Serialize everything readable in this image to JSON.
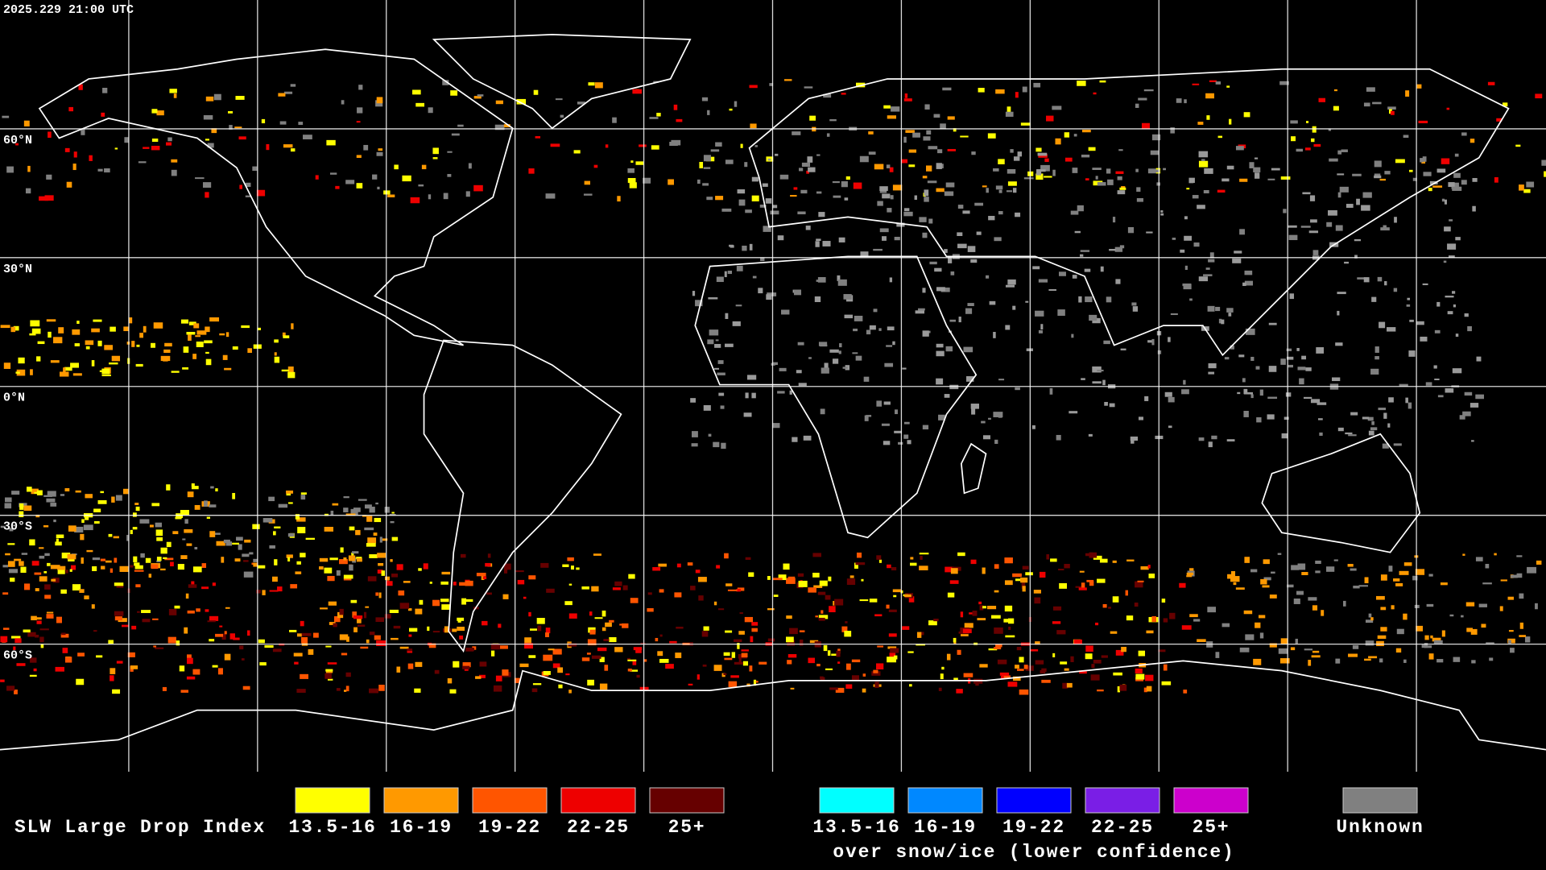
{
  "header": {
    "timestamp": "2025.229 21:00 UTC"
  },
  "latitude_labels": [
    "60°N",
    "30°N",
    "0°N",
    "30°S",
    "60°S"
  ],
  "legend": {
    "title": "SLW Large Drop Index",
    "standard": [
      {
        "label": "13.5-16",
        "color": "#ffff00"
      },
      {
        "label": "16-19",
        "color": "#ff9900"
      },
      {
        "label": "19-22",
        "color": "#ff5500"
      },
      {
        "label": "22-25",
        "color": "#ee0000"
      },
      {
        "label": "25+",
        "color": "#660000"
      }
    ],
    "snow_ice": [
      {
        "label": "13.5-16",
        "color": "#00ffff"
      },
      {
        "label": "16-19",
        "color": "#0088ff"
      },
      {
        "label": "19-22",
        "color": "#0000ff"
      },
      {
        "label": "22-25",
        "color": "#7a1ee6"
      },
      {
        "label": "25+",
        "color": "#cc00cc"
      }
    ],
    "snow_ice_caption": "over snow/ice (lower confidence)",
    "unknown": {
      "label": "Unknown",
      "color": "#808080"
    }
  }
}
